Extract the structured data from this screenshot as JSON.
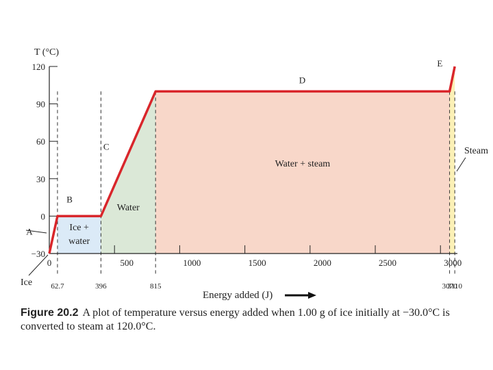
{
  "chart_data": {
    "type": "line",
    "title": "",
    "ylabel": "T (°C)",
    "xlabel": "Energy added (J)",
    "ylim": [
      -30,
      120
    ],
    "xlim": [
      0,
      3130
    ],
    "y_ticks": [
      "120",
      "90",
      "60",
      "30",
      "0",
      "−30"
    ],
    "y_tick_values": [
      120,
      90,
      60,
      30,
      0,
      -30
    ],
    "x_ticks": [
      "0",
      "500",
      "1000",
      "1500",
      "2000",
      "2500",
      "3000"
    ],
    "x_tick_values": [
      0,
      500,
      1000,
      1500,
      2000,
      2500,
      3000
    ],
    "marked_x": [
      "62.7",
      "396",
      "815",
      "3070",
      "3110"
    ],
    "marked_x_values": [
      62.7,
      396,
      815,
      3070,
      3110
    ],
    "series": [
      {
        "x": [
          0,
          62.7,
          396,
          815,
          3070,
          3110
        ],
        "y": [
          -30,
          0,
          0,
          100,
          100,
          120
        ],
        "color": "#d9262b"
      }
    ],
    "segment_labels": [
      {
        "text": "A",
        "x": 62.7,
        "y": -15
      },
      {
        "text": "B",
        "x": 229,
        "y": 0
      },
      {
        "text": "C",
        "x": 605,
        "y": 50
      },
      {
        "text": "D",
        "x": 1940,
        "y": 100
      },
      {
        "text": "E",
        "x": 3090,
        "y": 110
      }
    ],
    "regions": [
      {
        "x0": 62.7,
        "x1": 396,
        "label": "Ice + water",
        "lines": [
          "Ice +",
          "water"
        ],
        "fill": "#dbeaf7"
      },
      {
        "x0": 396,
        "x1": 815,
        "label": "Water",
        "lines": [
          "Water"
        ],
        "fill": "#dbe8d7"
      },
      {
        "x0": 815,
        "x1": 3070,
        "label": "Water + steam",
        "lines": [
          "Water + steam"
        ],
        "fill": "#f8d7c9"
      },
      {
        "x0": 3070,
        "x1": 3110,
        "label": "Steam",
        "lines": [
          "Steam"
        ],
        "fill": "#fbf0b6"
      }
    ],
    "annotations": [
      {
        "text": "Ice",
        "x": 0,
        "y": -30
      }
    ]
  },
  "caption": {
    "figure": "Figure 20.2",
    "text": "A plot of temperature versus energy added when 1.00 g of ice initially at −30.0°C is converted to steam at 120.0°C."
  }
}
